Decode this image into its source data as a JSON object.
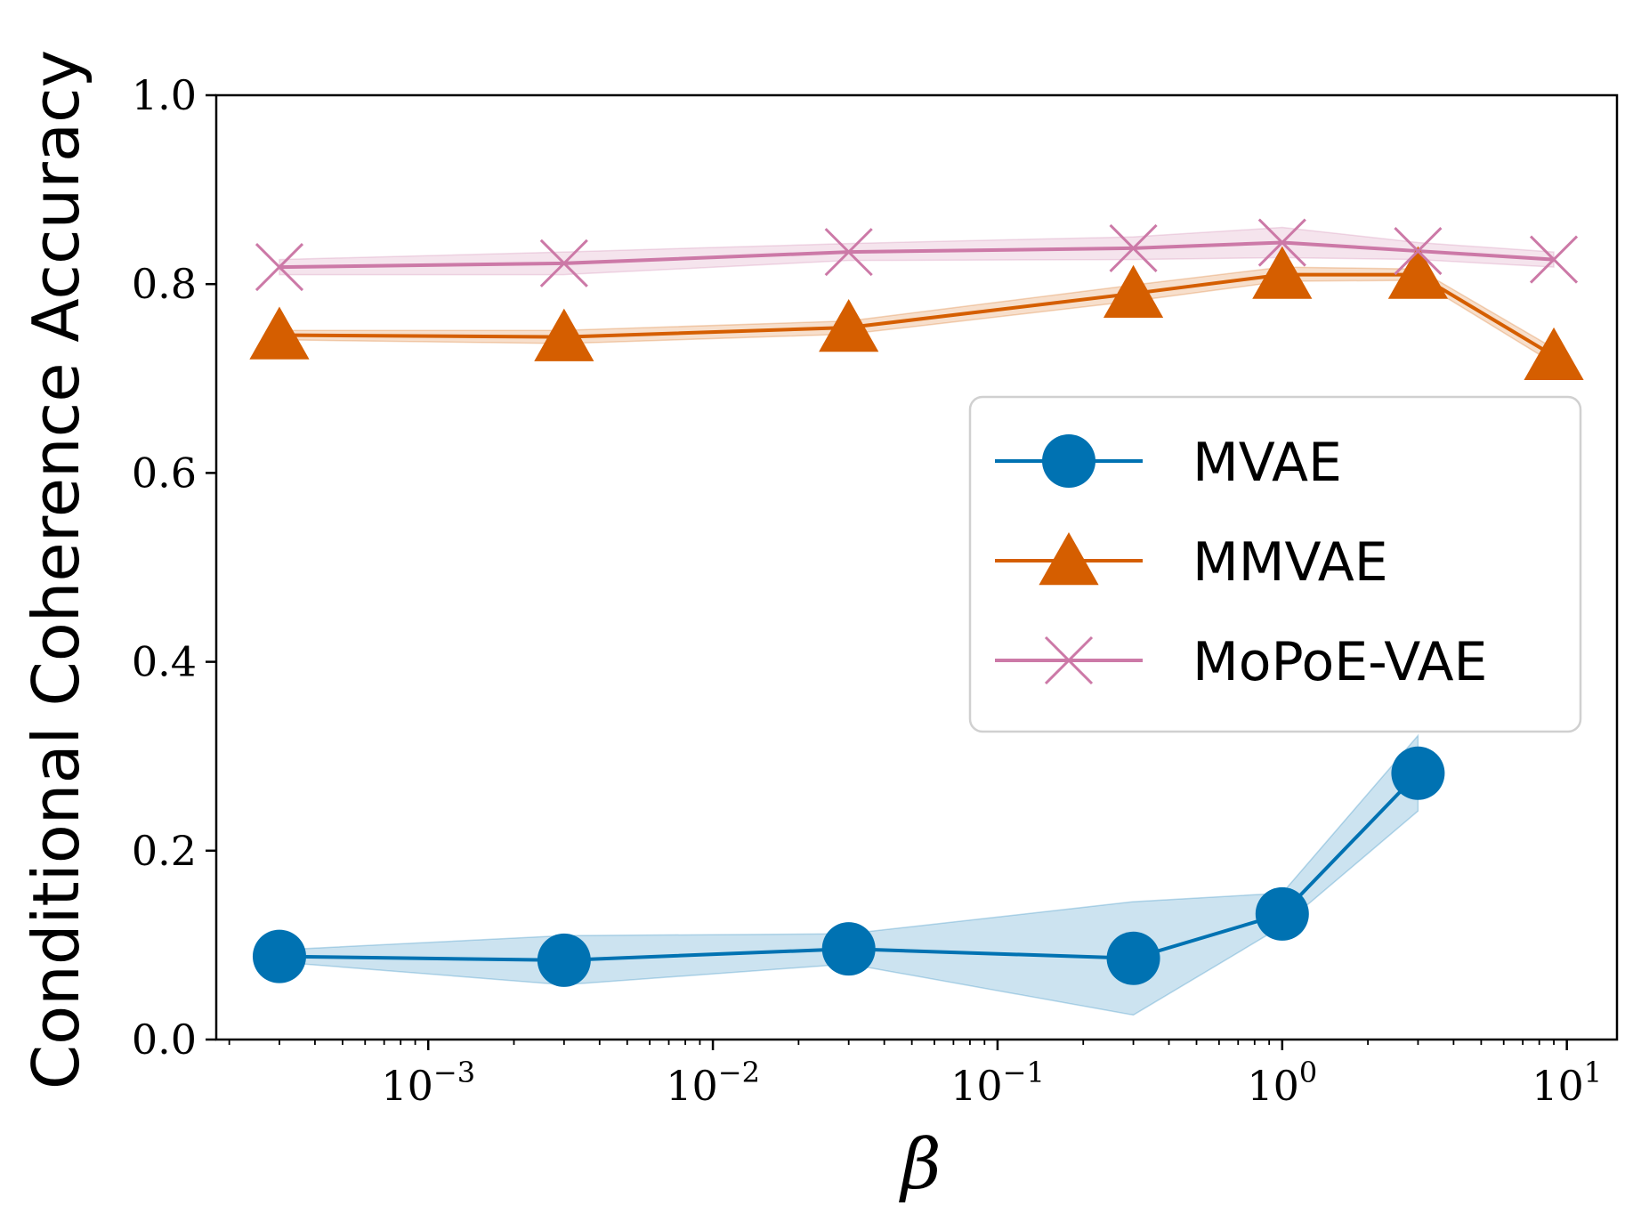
{
  "chart_data": {
    "type": "line",
    "title": "",
    "xlabel": "β",
    "ylabel": "Conditional Coherence Accuracy",
    "xscale": "log",
    "xlim": [
      0.00018,
      15
    ],
    "ylim": [
      0.0,
      1.0
    ],
    "grid": false,
    "legend_position": "center-right",
    "y_ticks": [
      "0.0",
      "0.2",
      "0.4",
      "0.6",
      "0.8",
      "1.0"
    ],
    "x_ticks": [
      {
        "base": "10",
        "exp": "−3"
      },
      {
        "base": "10",
        "exp": "−2"
      },
      {
        "base": "10",
        "exp": "−1"
      },
      {
        "base": "10",
        "exp": "0"
      },
      {
        "base": "10",
        "exp": "1"
      }
    ],
    "series": [
      {
        "name": "MVAE",
        "color": "#0072b2",
        "marker": "circle",
        "x": [
          0.0003,
          0.003,
          0.03,
          0.3,
          1,
          3
        ],
        "values": [
          0.088,
          0.084,
          0.096,
          0.086,
          0.133,
          0.282
        ],
        "lower": [
          0.082,
          0.058,
          0.08,
          0.026,
          0.12,
          0.242
        ],
        "upper": [
          0.095,
          0.11,
          0.112,
          0.146,
          0.155,
          0.322
        ]
      },
      {
        "name": "MMVAE",
        "color": "#d55e00",
        "marker": "triangle",
        "x": [
          0.0003,
          0.003,
          0.03,
          0.3,
          1,
          3,
          9
        ],
        "values": [
          0.746,
          0.744,
          0.754,
          0.79,
          0.81,
          0.81,
          0.724
        ],
        "lower": [
          0.741,
          0.737,
          0.747,
          0.782,
          0.803,
          0.804,
          0.716
        ],
        "upper": [
          0.751,
          0.751,
          0.761,
          0.799,
          0.818,
          0.816,
          0.732
        ]
      },
      {
        "name": "MoPoE-VAE",
        "color": "#cc79a7",
        "marker": "x",
        "x": [
          0.0003,
          0.003,
          0.03,
          0.3,
          1,
          3,
          9
        ],
        "values": [
          0.818,
          0.822,
          0.834,
          0.838,
          0.844,
          0.835,
          0.826
        ],
        "lower": [
          0.81,
          0.81,
          0.825,
          0.826,
          0.828,
          0.826,
          0.818
        ],
        "upper": [
          0.826,
          0.834,
          0.843,
          0.85,
          0.86,
          0.844,
          0.834
        ]
      }
    ]
  }
}
